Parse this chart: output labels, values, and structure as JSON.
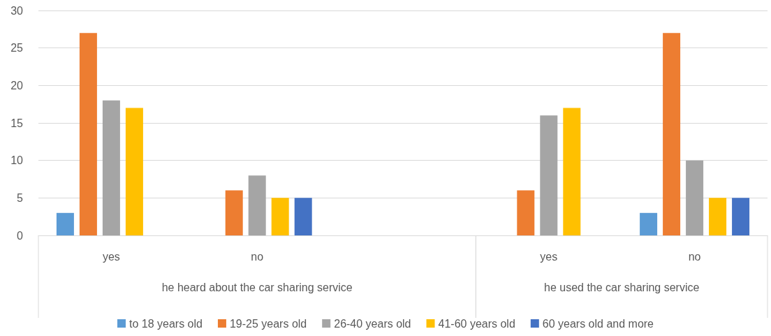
{
  "chart_data": {
    "type": "bar",
    "categories": [
      "yes",
      "no",
      null,
      "yes",
      "no"
    ],
    "annotations": [
      "he heard about the car sharing service",
      "he used the car sharing service"
    ],
    "series": [
      {
        "name": "to 18 years old",
        "color": "#5b9bd5",
        "values": [
          3,
          null,
          null,
          null,
          3
        ]
      },
      {
        "name": "19-25 years old",
        "color": "#ed7d31",
        "values": [
          27,
          6,
          null,
          6,
          27
        ]
      },
      {
        "name": "26-40 years old",
        "color": "#a5a5a5",
        "values": [
          18,
          8,
          null,
          16,
          10
        ]
      },
      {
        "name": "41-60 years old",
        "color": "#ffc000",
        "values": [
          17,
          5,
          null,
          17,
          5
        ]
      },
      {
        "name": "60 years old and more",
        "color": "#4472c4",
        "values": [
          null,
          5,
          null,
          null,
          5
        ]
      }
    ],
    "ylim": [
      0,
      30
    ],
    "yticks": [
      0,
      5,
      10,
      15,
      20,
      25,
      30
    ],
    "grid": "y",
    "legend": "bottom"
  }
}
